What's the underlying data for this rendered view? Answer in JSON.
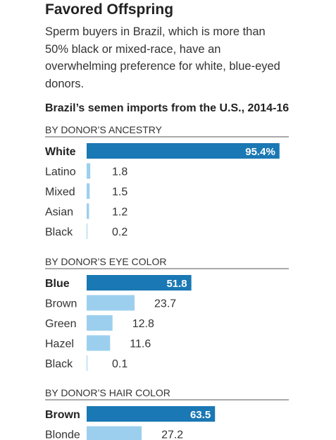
{
  "title": "Favored Offspring",
  "subtitle": "Sperm buyers in Brazil, which is more than 50% black or mixed-race, have an overwhelming preference for white, blue-eyed donors.",
  "chart_title": "Brazil’s semen imports from the U.S., 2014-16",
  "colors": {
    "highlight": "#1a78b4",
    "bar": "#9ccfee",
    "text": "#333333"
  },
  "chart_data": [
    {
      "type": "bar",
      "orientation": "horizontal",
      "title": "BY DONOR’S ANCESTRY",
      "unit": "%",
      "categories": [
        "White",
        "Latino",
        "Mixed",
        "Asian",
        "Black"
      ],
      "values": [
        95.4,
        1.8,
        1.5,
        1.2,
        0.2
      ],
      "labels": [
        "95.4%",
        "1.8",
        "1.5",
        "1.2",
        "0.2"
      ],
      "highlight_index": 0,
      "xlim": [
        0,
        100
      ]
    },
    {
      "type": "bar",
      "orientation": "horizontal",
      "title": "BY DONOR’S EYE COLOR",
      "unit": "%",
      "categories": [
        "Blue",
        "Brown",
        "Green",
        "Hazel",
        "Black"
      ],
      "values": [
        51.8,
        23.7,
        12.8,
        11.6,
        0.1
      ],
      "labels": [
        "51.8",
        "23.7",
        "12.8",
        "11.6",
        "0.1"
      ],
      "highlight_index": 0,
      "xlim": [
        0,
        100
      ]
    },
    {
      "type": "bar",
      "orientation": "horizontal",
      "title": "BY DONOR’S HAIR COLOR",
      "unit": "%",
      "categories": [
        "Brown",
        "Blonde"
      ],
      "values": [
        63.5,
        27.2
      ],
      "labels": [
        "63.5",
        "27.2"
      ],
      "highlight_index": 0,
      "xlim": [
        0,
        100
      ]
    }
  ]
}
